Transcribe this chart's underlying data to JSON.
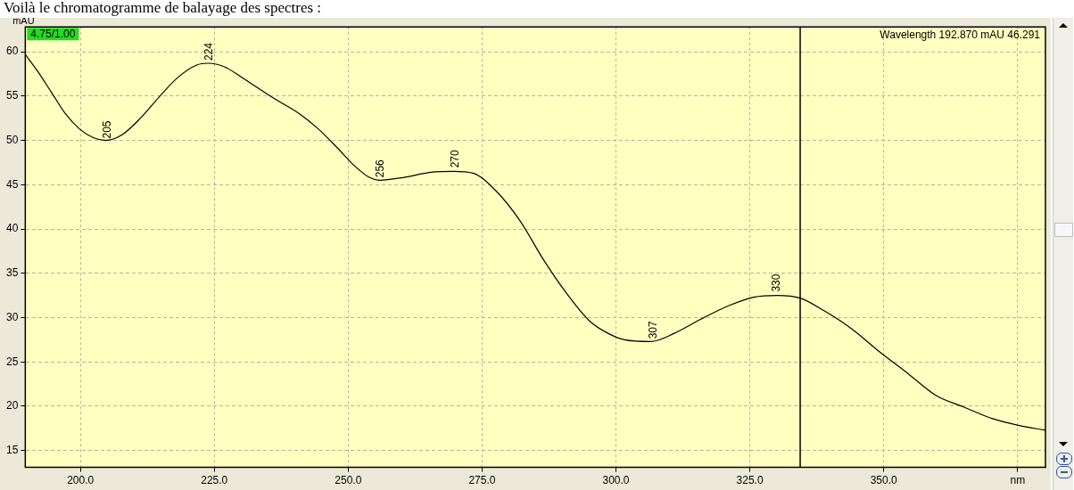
{
  "chart_data": {
    "type": "line",
    "title": "Voilà le chromatogramme de balayage des spectres :",
    "ylabel": "mAU",
    "x": [
      189.7,
      192,
      194.6,
      197.2,
      199.8,
      202.4,
      204.7,
      207.7,
      211.2,
      214.7,
      218.2,
      221.7,
      223.8,
      226.9,
      230.4,
      235.7,
      240.9,
      244.4,
      247.9,
      251.4,
      254,
      255.8,
      260.2,
      265.4,
      269.8,
      273.3,
      277.6,
      282,
      286.4,
      290.7,
      295.1,
      298.6,
      301.6,
      306.5,
      310.8,
      316.1,
      321.3,
      325.7,
      330.1,
      334.4,
      338.8,
      344.1,
      349.3,
      354.5,
      359.8,
      365,
      370.3,
      375.5,
      380.2
    ],
    "series": [
      {
        "color": "#000000",
        "values": [
          59.7,
          57.8,
          55.4,
          53,
          51.3,
          50.3,
          50,
          50.6,
          52.5,
          54.9,
          57.1,
          58.5,
          58.7,
          58.3,
          57,
          54.9,
          53,
          51.3,
          49.2,
          47,
          45.8,
          45.5,
          45.8,
          46.4,
          46.5,
          46.3,
          44.3,
          41,
          36.6,
          32.8,
          29.6,
          28.2,
          27.5,
          27.3,
          28.2,
          29.9,
          31.4,
          32.3,
          32.5,
          32.2,
          30.8,
          28.7,
          26.1,
          23.7,
          21.2,
          19.9,
          18.6,
          17.8,
          17.3
        ]
      }
    ],
    "xlim": [
      189.7,
      380.2
    ],
    "xticks": [
      {
        "value": 200,
        "label": "200.0"
      },
      {
        "value": 225,
        "label": "225.0"
      },
      {
        "value": 250,
        "label": "250.0"
      },
      {
        "value": 275,
        "label": "275.0"
      },
      {
        "value": 300,
        "label": "300.0"
      },
      {
        "value": 325,
        "label": "325.0"
      },
      {
        "value": 350,
        "label": "350.0"
      },
      {
        "value": 375,
        "label": "nm"
      }
    ],
    "ylim": [
      13.1,
      62.8
    ],
    "yticks": [
      15,
      20,
      25,
      30,
      35,
      40,
      45,
      50,
      55,
      60
    ],
    "grid": true,
    "legend": false,
    "marker": "none",
    "line_style": "solid",
    "ref_lines": [
      {
        "axis": "x",
        "value": 334.4,
        "color": "#000000"
      }
    ],
    "annotations": [
      "4.75/1.00",
      "Wavelength 192.870 mAU 46.291",
      {
        "text": "205",
        "x": 205,
        "y": 49.8
      },
      {
        "text": "224",
        "x": 224,
        "y": 58.6
      },
      {
        "text": "256",
        "x": 256,
        "y": 45.4
      },
      {
        "text": "270",
        "x": 270,
        "y": 46.5
      },
      {
        "text": "307",
        "x": 307,
        "y": 27.2
      },
      {
        "text": "330",
        "x": 330,
        "y": 32.5
      }
    ]
  }
}
